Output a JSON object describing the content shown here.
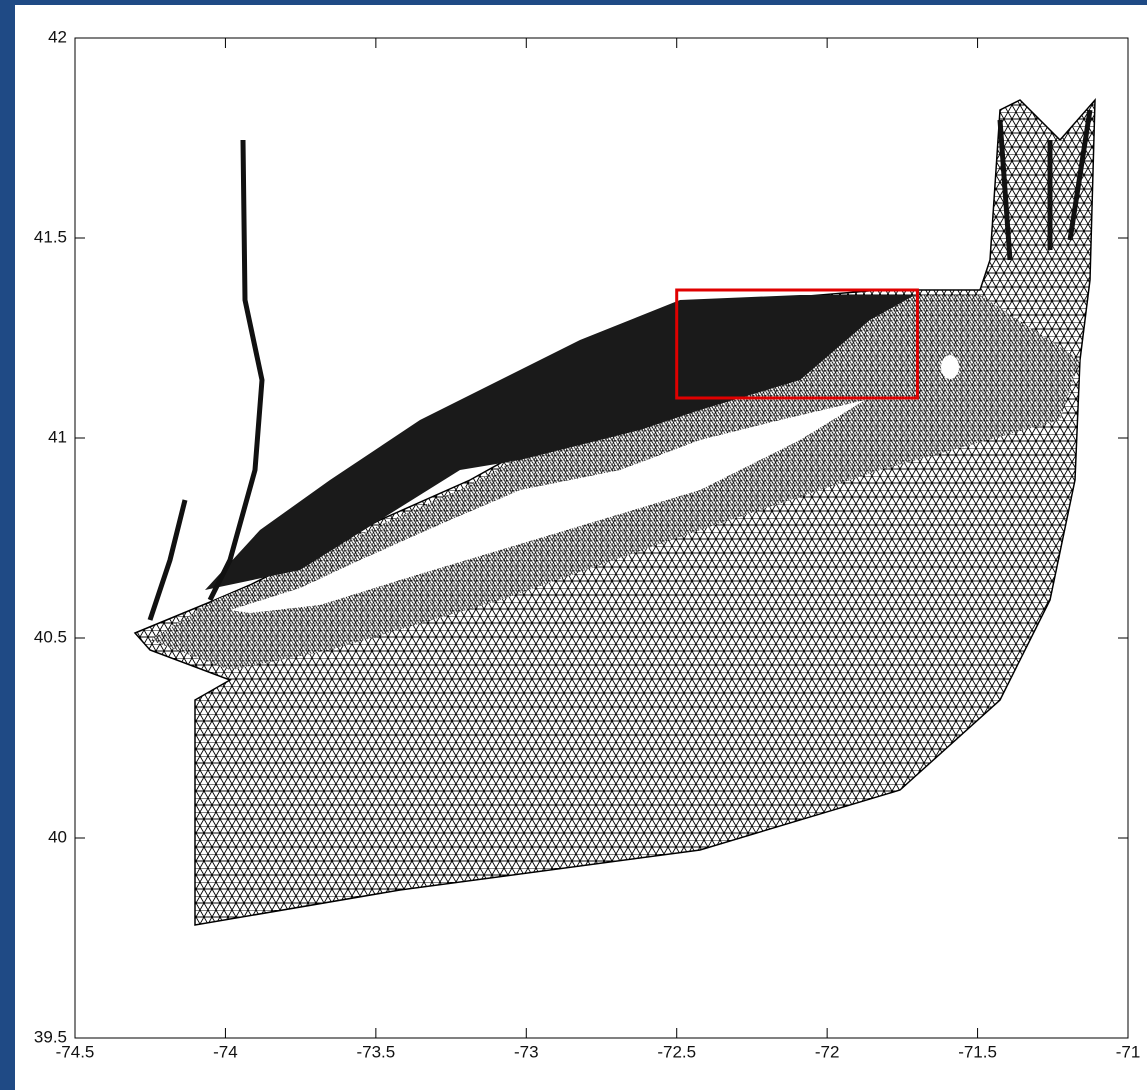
{
  "chart_data": {
    "type": "mesh",
    "xlim": [
      -74.5,
      -71
    ],
    "xticks": [
      -74.5,
      -74,
      -73.5,
      -73,
      -72.5,
      -72,
      -71.5,
      -71
    ],
    "ylim": [
      39.5,
      42
    ],
    "yticks": [
      39.5,
      40,
      40.5,
      41,
      41.5,
      42
    ],
    "highlight_box": {
      "x": [
        -72.5,
        -71.7
      ],
      "y": [
        41.1,
        41.37
      ],
      "color": "#e00000"
    }
  }
}
